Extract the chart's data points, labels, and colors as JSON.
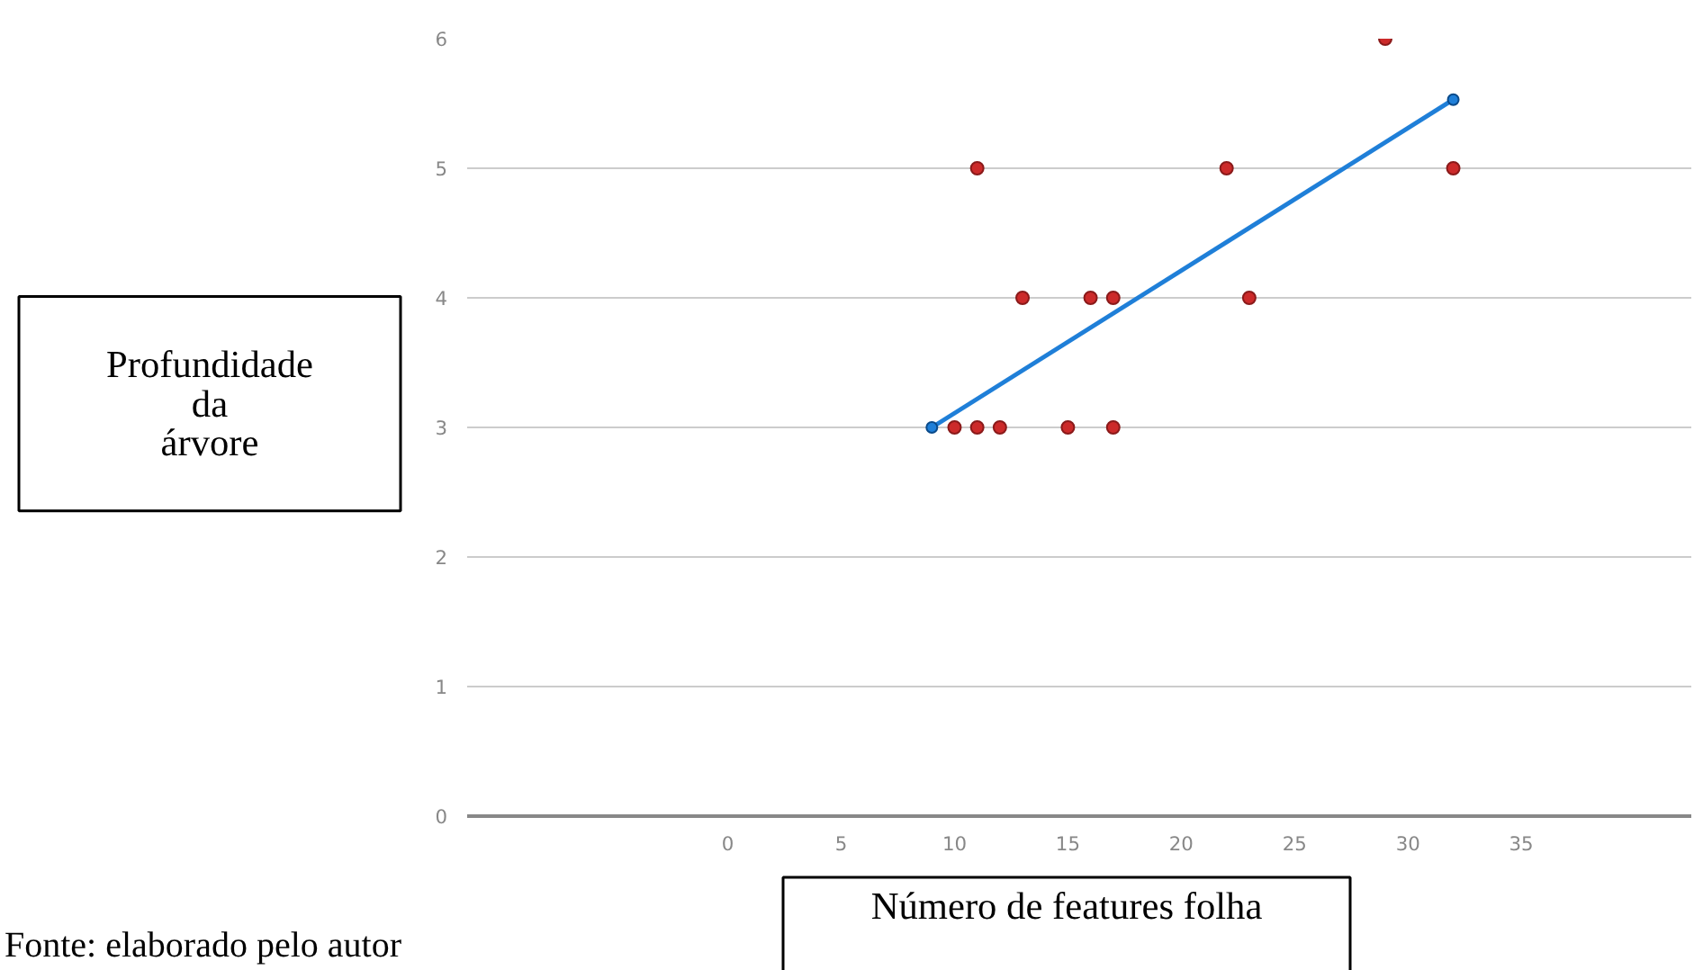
{
  "chart_data": {
    "type": "scatter",
    "xlabel": "Número de features folha",
    "ylabel": "Profundidade\nda\nárvore",
    "annotations": [
      "Fonte: elaborado pelo autor"
    ],
    "xlim": [
      -11.5,
      42.5
    ],
    "ylim": [
      0,
      6
    ],
    "xticks": [
      0,
      5,
      10,
      15,
      20,
      25,
      30,
      35
    ],
    "yticks": [
      0,
      1,
      2,
      3,
      4,
      5,
      6
    ],
    "grid": "y",
    "marker": "circle",
    "series": [
      {
        "color": "#cc2a2a",
        "x": [
          10,
          11,
          11,
          12,
          13,
          15,
          16,
          17,
          17,
          22,
          23,
          29,
          32
        ],
        "values": [
          3,
          3,
          5,
          3,
          4,
          3,
          4,
          3,
          4,
          5,
          4,
          6,
          5
        ]
      },
      {
        "type": "line",
        "color": "#1f7fd8",
        "x": [
          9,
          32
        ],
        "values": [
          3,
          5.53
        ]
      }
    ]
  }
}
